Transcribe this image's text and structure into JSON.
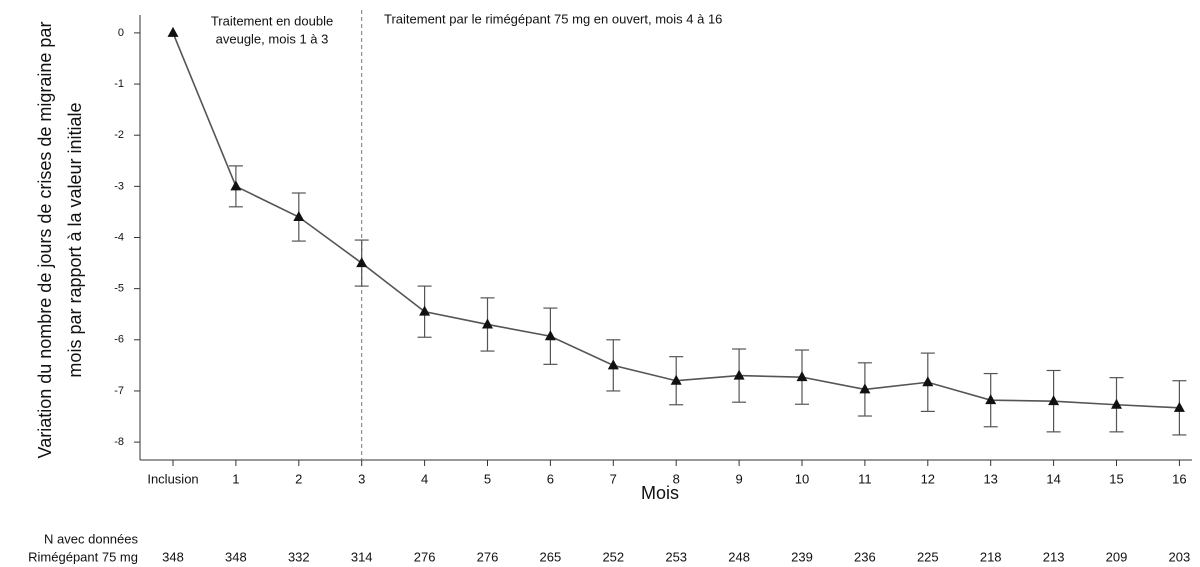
{
  "chart_data": {
    "type": "line",
    "annotations": [
      "Traitement en double",
      "aveugle, mois 1 à 3",
      "Traitement par le rimégépant 75 mg en ouvert, mois 4 à 16"
    ],
    "y_label": [
      "Variation du nombre de jours de crises de migraine par",
      "mois par rapport à la valeur initiale"
    ],
    "x_label": "Mois",
    "categories": [
      "Inclusion",
      "1",
      "2",
      "3",
      "4",
      "5",
      "6",
      "7",
      "8",
      "9",
      "10",
      "11",
      "12",
      "13",
      "14",
      "15",
      "16"
    ],
    "series": [
      {
        "color": "#555555",
        "values": [
          0,
          -3.0,
          -3.6,
          -4.5,
          -5.45,
          -5.7,
          -5.93,
          -6.5,
          -6.8,
          -6.7,
          -6.73,
          -6.97,
          -6.83,
          -7.18,
          -7.2,
          -7.27,
          -7.33
        ],
        "errors": [
          null,
          0.4,
          0.47,
          0.45,
          0.5,
          0.52,
          0.55,
          0.5,
          0.47,
          0.52,
          0.53,
          0.52,
          0.57,
          0.52,
          0.6,
          0.53,
          0.53
        ]
      }
    ],
    "ylim": [
      -8.35,
      0.35
    ],
    "yticks": [
      0,
      -1,
      -2,
      -3,
      -4,
      -5,
      -6,
      -7,
      -8
    ],
    "table": {
      "header": "N avec données",
      "row_label": "Rimégépant 75 mg",
      "values": [
        348,
        348,
        332,
        314,
        276,
        276,
        265,
        252,
        253,
        248,
        239,
        236,
        225,
        218,
        213,
        209,
        203
      ]
    }
  }
}
